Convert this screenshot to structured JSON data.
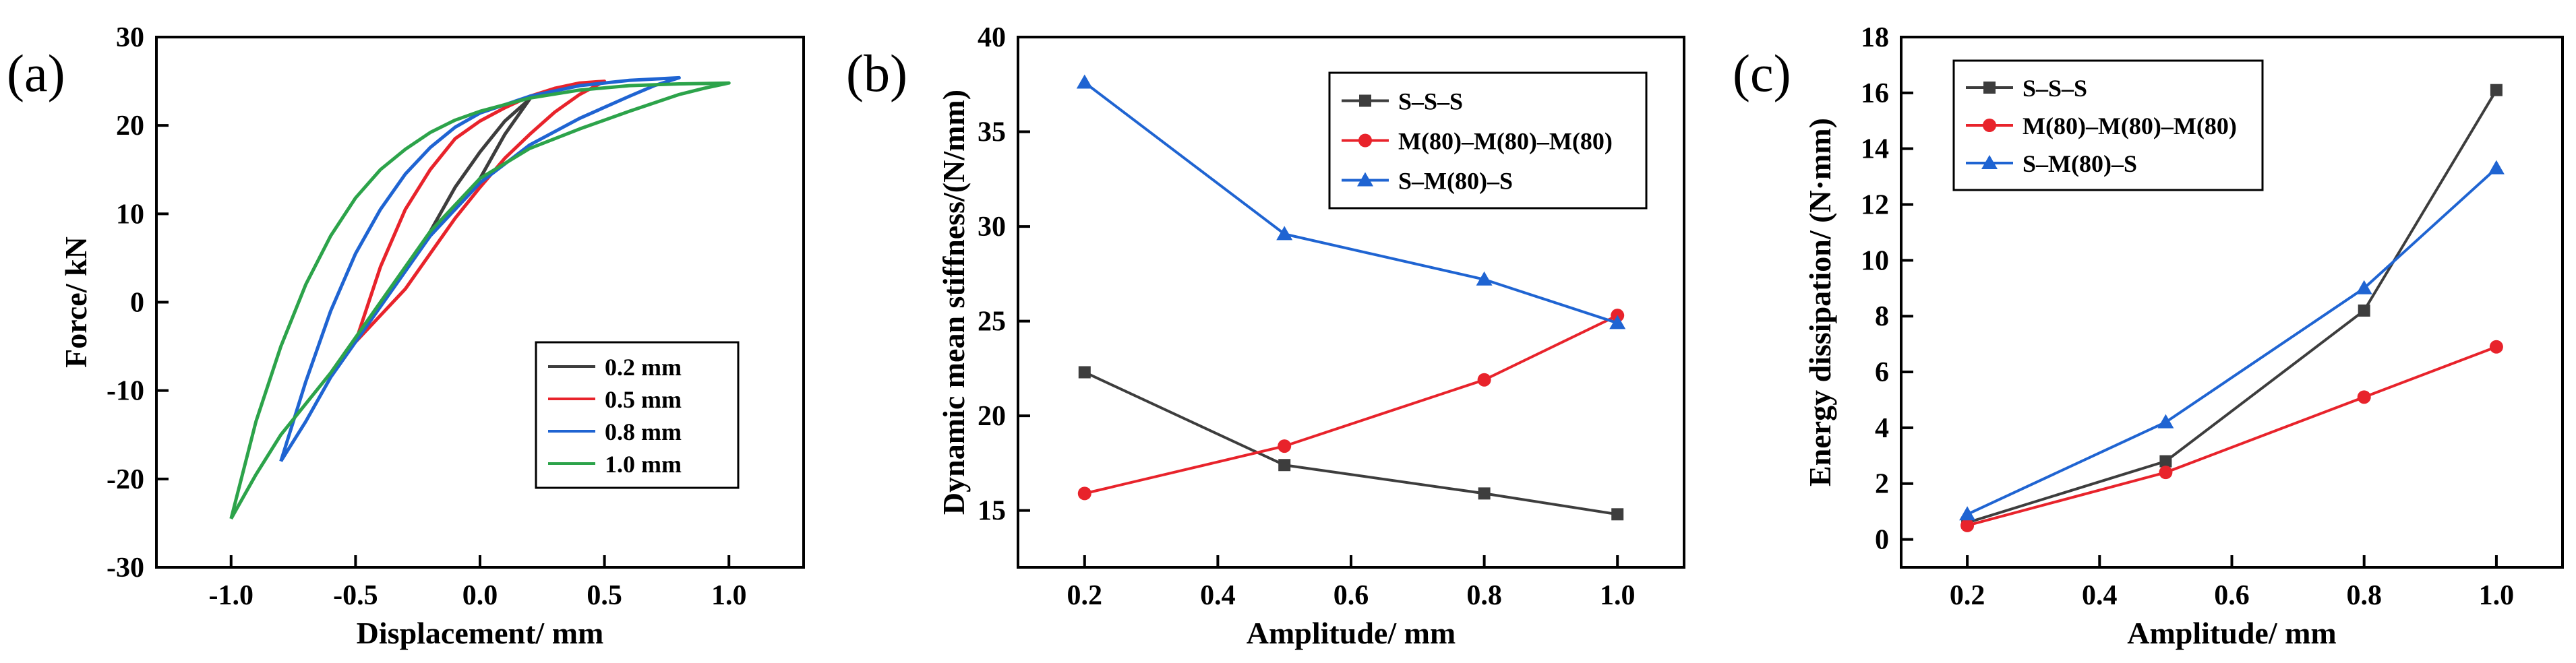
{
  "chart_data": [
    {
      "type": "line",
      "panel_label": "(a)",
      "xlabel": "Displacement/ mm",
      "ylabel": "Force/ kN",
      "xlim": [
        -1.3,
        1.3
      ],
      "ylim": [
        -30,
        30
      ],
      "xticks": [
        -1.0,
        -0.5,
        0.0,
        0.5,
        1.0
      ],
      "xtick_labels": [
        "-1.0",
        "-0.5",
        "0.0",
        "0.5",
        "1.0"
      ],
      "yticks": [
        -30,
        -20,
        -10,
        0,
        10,
        20,
        30
      ],
      "ytick_labels": [
        "-30",
        "-20",
        "-10",
        "0",
        "10",
        "20",
        "30"
      ],
      "legend_position": "bottom-right",
      "series": [
        {
          "name": "0.2 mm",
          "color": "#3d3d3d",
          "x_amp": 0.2,
          "loading": [
            [
              -0.2,
              8
            ],
            [
              -0.1,
              13
            ],
            [
              0,
              17
            ],
            [
              0.1,
              20.5
            ],
            [
              0.2,
              23
            ]
          ],
          "unloading": [
            [
              0.2,
              23
            ],
            [
              0.1,
              19
            ],
            [
              0,
              14
            ],
            [
              -0.1,
              10.5
            ],
            [
              -0.2,
              8
            ]
          ]
        },
        {
          "name": "0.5 mm",
          "color": "#e8232b",
          "x_amp": 0.5,
          "loading": [
            [
              -0.5,
              -4.5
            ],
            [
              -0.4,
              4
            ],
            [
              -0.3,
              10.5
            ],
            [
              -0.2,
              15
            ],
            [
              -0.1,
              18.5
            ],
            [
              0,
              20.5
            ],
            [
              0.1,
              22
            ],
            [
              0.2,
              23.3
            ],
            [
              0.3,
              24.2
            ],
            [
              0.4,
              24.8
            ],
            [
              0.5,
              25
            ]
          ],
          "unloading": [
            [
              0.5,
              25
            ],
            [
              0.4,
              23.5
            ],
            [
              0.3,
              21.5
            ],
            [
              0.2,
              19
            ],
            [
              0.1,
              16.3
            ],
            [
              0,
              13
            ],
            [
              -0.1,
              9.5
            ],
            [
              -0.2,
              5.5
            ],
            [
              -0.3,
              1.5
            ],
            [
              -0.4,
              -1.5
            ],
            [
              -0.5,
              -4.5
            ]
          ]
        },
        {
          "name": "0.8 mm",
          "color": "#1f64d2",
          "x_amp": 0.8,
          "loading": [
            [
              -0.8,
              -18
            ],
            [
              -0.7,
              -9
            ],
            [
              -0.6,
              -1
            ],
            [
              -0.5,
              5.5
            ],
            [
              -0.4,
              10.5
            ],
            [
              -0.3,
              14.5
            ],
            [
              -0.2,
              17.5
            ],
            [
              -0.1,
              19.8
            ],
            [
              0,
              21.4
            ],
            [
              0.2,
              23.3
            ],
            [
              0.4,
              24.5
            ],
            [
              0.6,
              25.1
            ],
            [
              0.8,
              25.4
            ]
          ],
          "unloading": [
            [
              0.8,
              25.4
            ],
            [
              0.7,
              24.5
            ],
            [
              0.6,
              23.3
            ],
            [
              0.4,
              20.8
            ],
            [
              0.2,
              17.8
            ],
            [
              0,
              13.5
            ],
            [
              -0.2,
              7.5
            ],
            [
              -0.4,
              -0.5
            ],
            [
              -0.6,
              -8.5
            ],
            [
              -0.7,
              -13.5
            ],
            [
              -0.8,
              -18
            ]
          ]
        },
        {
          "name": "1.0 mm",
          "color": "#2ca34a",
          "x_amp": 1.0,
          "loading": [
            [
              -1.0,
              -24.5
            ],
            [
              -0.9,
              -13.5
            ],
            [
              -0.8,
              -5
            ],
            [
              -0.7,
              2
            ],
            [
              -0.6,
              7.5
            ],
            [
              -0.5,
              11.8
            ],
            [
              -0.4,
              15
            ],
            [
              -0.3,
              17.3
            ],
            [
              -0.2,
              19.2
            ],
            [
              -0.1,
              20.6
            ],
            [
              0,
              21.6
            ],
            [
              0.2,
              23.1
            ],
            [
              0.4,
              24
            ],
            [
              0.6,
              24.5
            ],
            [
              0.8,
              24.7
            ],
            [
              1.0,
              24.8
            ]
          ],
          "unloading": [
            [
              1.0,
              24.8
            ],
            [
              0.9,
              24.2
            ],
            [
              0.8,
              23.5
            ],
            [
              0.6,
              21.6
            ],
            [
              0.4,
              19.6
            ],
            [
              0.2,
              17.4
            ],
            [
              0,
              14
            ],
            [
              -0.2,
              8
            ],
            [
              -0.4,
              0
            ],
            [
              -0.6,
              -8
            ],
            [
              -0.8,
              -15
            ],
            [
              -0.9,
              -19.5
            ],
            [
              -1.0,
              -24.5
            ]
          ]
        }
      ]
    },
    {
      "type": "line",
      "panel_label": "(b)",
      "xlabel": "Amplitude/ mm",
      "ylabel": "Dynamic mean stiffness/(N/mm)",
      "xlim": [
        0.1,
        1.1
      ],
      "ylim": [
        12,
        40
      ],
      "xticks": [
        0.2,
        0.4,
        0.6,
        0.8,
        1.0
      ],
      "xtick_labels": [
        "0.2",
        "0.4",
        "0.6",
        "0.8",
        "1.0"
      ],
      "yticks": [
        15,
        20,
        25,
        30,
        35,
        40
      ],
      "ytick_labels": [
        "15",
        "20",
        "25",
        "30",
        "35",
        "40"
      ],
      "legend_position": "top-right",
      "x": [
        0.2,
        0.5,
        0.8,
        1.0
      ],
      "series": [
        {
          "name": "S–S–S",
          "color": "#3d3d3d",
          "marker": "square",
          "values": [
            22.3,
            17.4,
            15.9,
            14.8
          ]
        },
        {
          "name": "M(80)–M(80)–M(80)",
          "color": "#e8232b",
          "marker": "circle",
          "values": [
            15.9,
            18.4,
            21.9,
            25.3
          ]
        },
        {
          "name": "S–M(80)–S",
          "color": "#1f64d2",
          "marker": "triangle",
          "values": [
            37.6,
            29.6,
            27.2,
            24.9
          ]
        }
      ]
    },
    {
      "type": "line",
      "panel_label": "(c)",
      "xlabel": "Amplitude/ mm",
      "ylabel": "Energy dissipation/ (N·mm)",
      "xlim": [
        0.1,
        1.1
      ],
      "ylim": [
        -1,
        18
      ],
      "xticks": [
        0.2,
        0.4,
        0.6,
        0.8,
        1.0
      ],
      "xtick_labels": [
        "0.2",
        "0.4",
        "0.6",
        "0.8",
        "1.0"
      ],
      "yticks": [
        0,
        2,
        4,
        6,
        8,
        10,
        12,
        14,
        16,
        18
      ],
      "ytick_labels": [
        "0",
        "2",
        "4",
        "6",
        "8",
        "10",
        "12",
        "14",
        "16",
        "18"
      ],
      "legend_position": "top-left",
      "x": [
        0.2,
        0.5,
        0.8,
        1.0
      ],
      "series": [
        {
          "name": "S–S–S",
          "color": "#3d3d3d",
          "marker": "square",
          "values": [
            0.6,
            2.8,
            8.2,
            16.1
          ]
        },
        {
          "name": "M(80)–M(80)–M(80)",
          "color": "#e8232b",
          "marker": "circle",
          "values": [
            0.5,
            2.4,
            5.1,
            6.9
          ]
        },
        {
          "name": "S–M(80)–S",
          "color": "#1f64d2",
          "marker": "triangle",
          "values": [
            0.9,
            4.2,
            9.0,
            13.3
          ]
        }
      ]
    }
  ]
}
